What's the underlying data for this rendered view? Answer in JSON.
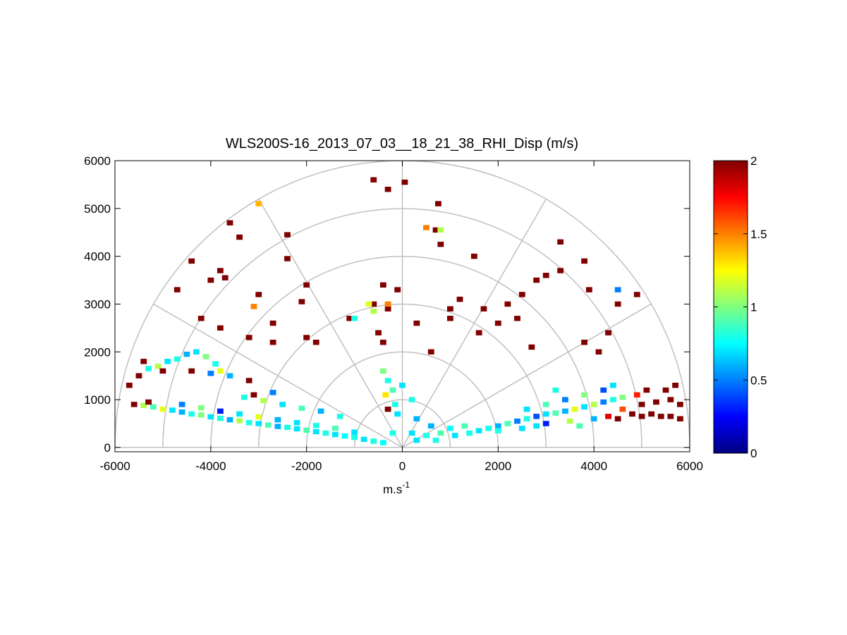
{
  "chart_data": {
    "type": "rhi",
    "title": "WLS200S-16_2013_07_03__18_21_38_RHI_Disp (m/s)",
    "xlabel": {
      "base": "m.s",
      "sup": "-1"
    },
    "xlim": [
      -6000,
      6000
    ],
    "ylim": [
      -90,
      6000
    ],
    "xticks": [
      -6000,
      -4000,
      -2000,
      0,
      2000,
      4000,
      6000
    ],
    "yticks": [
      0,
      1000,
      2000,
      3000,
      4000,
      5000,
      6000
    ],
    "rings": [
      1000,
      2000,
      3000,
      4000,
      5000,
      6000
    ],
    "spokes": [
      0,
      30,
      60,
      90,
      120,
      150,
      180
    ],
    "clim": [
      0,
      2
    ],
    "cticks": [
      0,
      0.5,
      1,
      1.5,
      2
    ],
    "colormap": "jet",
    "cells": [
      {
        "x": -5400,
        "y": 880,
        "value": 1.1
      },
      {
        "x": -5200,
        "y": 850,
        "value": 0.9
      },
      {
        "x": -5000,
        "y": 800,
        "value": 1.2
      },
      {
        "x": -4800,
        "y": 780,
        "value": 0.7
      },
      {
        "x": -4600,
        "y": 740,
        "value": 0.6
      },
      {
        "x": -4400,
        "y": 700,
        "value": 0.8
      },
      {
        "x": -4200,
        "y": 680,
        "value": 1.0
      },
      {
        "x": -4000,
        "y": 640,
        "value": 0.7
      },
      {
        "x": -3800,
        "y": 610,
        "value": 0.8
      },
      {
        "x": -3600,
        "y": 580,
        "value": 0.6
      },
      {
        "x": -3400,
        "y": 560,
        "value": 1.1
      },
      {
        "x": -3200,
        "y": 520,
        "value": 0.8
      },
      {
        "x": -3000,
        "y": 500,
        "value": 0.7
      },
      {
        "x": -2800,
        "y": 470,
        "value": 0.9
      },
      {
        "x": -2600,
        "y": 440,
        "value": 0.6
      },
      {
        "x": -2400,
        "y": 420,
        "value": 0.8
      },
      {
        "x": -2200,
        "y": 390,
        "value": 0.7
      },
      {
        "x": -2000,
        "y": 360,
        "value": 0.9
      },
      {
        "x": -1800,
        "y": 330,
        "value": 0.7
      },
      {
        "x": -1600,
        "y": 300,
        "value": 0.8
      },
      {
        "x": -1400,
        "y": 270,
        "value": 0.7
      },
      {
        "x": -1200,
        "y": 240,
        "value": 0.75
      },
      {
        "x": -1000,
        "y": 210,
        "value": 0.8
      },
      {
        "x": -800,
        "y": 170,
        "value": 0.7
      },
      {
        "x": -600,
        "y": 130,
        "value": 0.8
      },
      {
        "x": -400,
        "y": 100,
        "value": 0.75
      },
      {
        "x": -5300,
        "y": 950,
        "value": 2
      },
      {
        "x": -4600,
        "y": 900,
        "value": 0.5
      },
      {
        "x": -4200,
        "y": 830,
        "value": 1.0
      },
      {
        "x": -3800,
        "y": 760,
        "value": 0.3
      },
      {
        "x": -3400,
        "y": 700,
        "value": 0.7
      },
      {
        "x": -3000,
        "y": 640,
        "value": 1.2
      },
      {
        "x": -2600,
        "y": 580,
        "value": 0.6
      },
      {
        "x": -2200,
        "y": 520,
        "value": 0.7
      },
      {
        "x": -1800,
        "y": 460,
        "value": 0.8
      },
      {
        "x": -1400,
        "y": 400,
        "value": 0.9
      },
      {
        "x": -1000,
        "y": 320,
        "value": 0.7
      },
      {
        "x": -3300,
        "y": 1050,
        "value": 0.8
      },
      {
        "x": -2900,
        "y": 980,
        "value": 1.1
      },
      {
        "x": -2500,
        "y": 900,
        "value": 0.7
      },
      {
        "x": -2100,
        "y": 820,
        "value": 0.9
      },
      {
        "x": -1700,
        "y": 760,
        "value": 0.6
      },
      {
        "x": -1300,
        "y": 650,
        "value": 0.8
      },
      {
        "x": -3100,
        "y": 1100,
        "value": 2
      },
      {
        "x": -2700,
        "y": 1150,
        "value": 0.5
      },
      {
        "x": -5500,
        "y": 1500,
        "value": 2
      },
      {
        "x": -5300,
        "y": 1650,
        "value": 0.8
      },
      {
        "x": -5100,
        "y": 1700,
        "value": 1.1
      },
      {
        "x": -4900,
        "y": 1800,
        "value": 0.7
      },
      {
        "x": -4700,
        "y": 1850,
        "value": 0.8
      },
      {
        "x": -4500,
        "y": 1950,
        "value": 0.6
      },
      {
        "x": -4300,
        "y": 2000,
        "value": 0.7
      },
      {
        "x": -4100,
        "y": 1900,
        "value": 1.0
      },
      {
        "x": -3900,
        "y": 1750,
        "value": 0.8
      },
      {
        "x": -4000,
        "y": 1550,
        "value": 0.5
      },
      {
        "x": -4400,
        "y": 1600,
        "value": 2
      },
      {
        "x": -5000,
        "y": 1600,
        "value": 2
      },
      {
        "x": -3800,
        "y": 1600,
        "value": 1.2
      },
      {
        "x": -3600,
        "y": 1500,
        "value": 0.6
      },
      {
        "x": -5700,
        "y": 1300,
        "value": 2
      },
      {
        "x": -5600,
        "y": 900,
        "value": 2
      },
      {
        "x": -400,
        "y": 1600,
        "value": 1.0
      },
      {
        "x": -300,
        "y": 1400,
        "value": 0.8
      },
      {
        "x": -200,
        "y": 1200,
        "value": 0.9
      },
      {
        "x": -350,
        "y": 1100,
        "value": 1.3
      },
      {
        "x": -150,
        "y": 900,
        "value": 0.8
      },
      {
        "x": -100,
        "y": 700,
        "value": 0.7
      },
      {
        "x": -300,
        "y": 800,
        "value": 2
      },
      {
        "x": 200,
        "y": 1000,
        "value": 0.8
      },
      {
        "x": 300,
        "y": 600,
        "value": 0.6
      },
      {
        "x": 0,
        "y": 1300,
        "value": 0.7
      },
      {
        "x": 200,
        "y": 300,
        "value": 0.7
      },
      {
        "x": 500,
        "y": 250,
        "value": 0.8
      },
      {
        "x": 800,
        "y": 300,
        "value": 0.9
      },
      {
        "x": 1100,
        "y": 250,
        "value": 0.7
      },
      {
        "x": 1400,
        "y": 300,
        "value": 0.8
      },
      {
        "x": 600,
        "y": 450,
        "value": 0.6
      },
      {
        "x": 1000,
        "y": 400,
        "value": 0.75
      },
      {
        "x": 1300,
        "y": 450,
        "value": 0.9
      },
      {
        "x": -200,
        "y": 300,
        "value": 0.8
      },
      {
        "x": 300,
        "y": 150,
        "value": 0.7
      },
      {
        "x": 700,
        "y": 150,
        "value": 0.8
      },
      {
        "x": 1600,
        "y": 350,
        "value": 0.7
      },
      {
        "x": 1800,
        "y": 400,
        "value": 0.8
      },
      {
        "x": 2000,
        "y": 450,
        "value": 0.6
      },
      {
        "x": 2200,
        "y": 500,
        "value": 0.9
      },
      {
        "x": 2400,
        "y": 550,
        "value": 0.5
      },
      {
        "x": 2600,
        "y": 600,
        "value": 0.8
      },
      {
        "x": 2800,
        "y": 650,
        "value": 0.4
      },
      {
        "x": 3000,
        "y": 700,
        "value": 0.7
      },
      {
        "x": 3200,
        "y": 720,
        "value": 0.9
      },
      {
        "x": 3400,
        "y": 760,
        "value": 0.6
      },
      {
        "x": 3600,
        "y": 800,
        "value": 1.2
      },
      {
        "x": 3800,
        "y": 850,
        "value": 0.7
      },
      {
        "x": 4000,
        "y": 900,
        "value": 1.1
      },
      {
        "x": 4200,
        "y": 950,
        "value": 0.5
      },
      {
        "x": 4400,
        "y": 1000,
        "value": 0.8
      },
      {
        "x": 4600,
        "y": 1050,
        "value": 1.0
      },
      {
        "x": 2000,
        "y": 350,
        "value": 0.8
      },
      {
        "x": 2500,
        "y": 400,
        "value": 0.7
      },
      {
        "x": 3000,
        "y": 500,
        "value": 0.3
      },
      {
        "x": 3500,
        "y": 550,
        "value": 1.1
      },
      {
        "x": 4000,
        "y": 600,
        "value": 0.6
      },
      {
        "x": 4300,
        "y": 650,
        "value": 1.8
      },
      {
        "x": 3700,
        "y": 450,
        "value": 0.9
      },
      {
        "x": 2800,
        "y": 450,
        "value": 0.7
      },
      {
        "x": 2600,
        "y": 800,
        "value": 0.7
      },
      {
        "x": 3000,
        "y": 900,
        "value": 0.9
      },
      {
        "x": 3400,
        "y": 1000,
        "value": 0.5
      },
      {
        "x": 3800,
        "y": 1100,
        "value": 1.0
      },
      {
        "x": 4200,
        "y": 1200,
        "value": 0.4
      },
      {
        "x": 4400,
        "y": 1300,
        "value": 0.7
      },
      {
        "x": 3200,
        "y": 1200,
        "value": 0.8
      },
      {
        "x": 4800,
        "y": 700,
        "value": 2
      },
      {
        "x": 5000,
        "y": 650,
        "value": 2
      },
      {
        "x": 5200,
        "y": 700,
        "value": 2
      },
      {
        "x": 5400,
        "y": 650,
        "value": 2
      },
      {
        "x": 5600,
        "y": 650,
        "value": 2
      },
      {
        "x": 5800,
        "y": 600,
        "value": 2
      },
      {
        "x": 5000,
        "y": 900,
        "value": 2
      },
      {
        "x": 5300,
        "y": 950,
        "value": 2
      },
      {
        "x": 5600,
        "y": 1000,
        "value": 2
      },
      {
        "x": 5500,
        "y": 1200,
        "value": 2
      },
      {
        "x": 5700,
        "y": 1300,
        "value": 2
      },
      {
        "x": 4900,
        "y": 1100,
        "value": 1.7
      },
      {
        "x": 5100,
        "y": 1200,
        "value": 2
      },
      {
        "x": 5800,
        "y": 900,
        "value": 2
      },
      {
        "x": 4600,
        "y": 800,
        "value": 1.6
      },
      {
        "x": 4500,
        "y": 600,
        "value": 2
      },
      {
        "x": -600,
        "y": 5600,
        "value": 2
      },
      {
        "x": 50,
        "y": 5550,
        "value": 2
      },
      {
        "x": -300,
        "y": 5400,
        "value": 2
      },
      {
        "x": 750,
        "y": 5100,
        "value": 2
      },
      {
        "x": 700,
        "y": 4550,
        "value": 2
      },
      {
        "x": 800,
        "y": 4250,
        "value": 2
      },
      {
        "x": 1500,
        "y": 4000,
        "value": 2
      },
      {
        "x": -3600,
        "y": 4700,
        "value": 2
      },
      {
        "x": -3400,
        "y": 4400,
        "value": 2
      },
      {
        "x": -2400,
        "y": 4450,
        "value": 2
      },
      {
        "x": -2400,
        "y": 3950,
        "value": 2
      },
      {
        "x": -4400,
        "y": 3900,
        "value": 2
      },
      {
        "x": -3800,
        "y": 3700,
        "value": 2
      },
      {
        "x": -4000,
        "y": 3500,
        "value": 2
      },
      {
        "x": -3700,
        "y": 3550,
        "value": 2
      },
      {
        "x": -4700,
        "y": 3300,
        "value": 2
      },
      {
        "x": -3000,
        "y": 3200,
        "value": 2
      },
      {
        "x": -2000,
        "y": 3400,
        "value": 2
      },
      {
        "x": -2100,
        "y": 3050,
        "value": 2
      },
      {
        "x": -4200,
        "y": 2700,
        "value": 2
      },
      {
        "x": -3800,
        "y": 2500,
        "value": 2
      },
      {
        "x": -3200,
        "y": 2300,
        "value": 2
      },
      {
        "x": -2700,
        "y": 2600,
        "value": 2
      },
      {
        "x": -2000,
        "y": 2300,
        "value": 2
      },
      {
        "x": -1800,
        "y": 2200,
        "value": 2
      },
      {
        "x": -2700,
        "y": 2200,
        "value": 2
      },
      {
        "x": -1100,
        "y": 2700,
        "value": 2
      },
      {
        "x": -600,
        "y": 3000,
        "value": 2
      },
      {
        "x": -400,
        "y": 3400,
        "value": 2
      },
      {
        "x": -100,
        "y": 3300,
        "value": 2
      },
      {
        "x": -300,
        "y": 2900,
        "value": 2
      },
      {
        "x": -500,
        "y": 2400,
        "value": 2
      },
      {
        "x": -400,
        "y": 2200,
        "value": 2
      },
      {
        "x": 300,
        "y": 2600,
        "value": 2
      },
      {
        "x": 600,
        "y": 2000,
        "value": 2
      },
      {
        "x": 1000,
        "y": 2700,
        "value": 2
      },
      {
        "x": 1200,
        "y": 3100,
        "value": 2
      },
      {
        "x": 1700,
        "y": 2900,
        "value": 2
      },
      {
        "x": 2000,
        "y": 2600,
        "value": 2
      },
      {
        "x": 1600,
        "y": 2400,
        "value": 2
      },
      {
        "x": 2200,
        "y": 3000,
        "value": 2
      },
      {
        "x": 2400,
        "y": 2700,
        "value": 2
      },
      {
        "x": 2500,
        "y": 3200,
        "value": 2
      },
      {
        "x": 2800,
        "y": 3500,
        "value": 2
      },
      {
        "x": 3000,
        "y": 3600,
        "value": 2
      },
      {
        "x": 3300,
        "y": 3700,
        "value": 2
      },
      {
        "x": 3300,
        "y": 4300,
        "value": 2
      },
      {
        "x": 3800,
        "y": 3900,
        "value": 2
      },
      {
        "x": 3900,
        "y": 3300,
        "value": 2
      },
      {
        "x": 4500,
        "y": 3000,
        "value": 2
      },
      {
        "x": 4900,
        "y": 3200,
        "value": 2
      },
      {
        "x": 3800,
        "y": 2200,
        "value": 2
      },
      {
        "x": 4100,
        "y": 2000,
        "value": 2
      },
      {
        "x": 4300,
        "y": 2400,
        "value": 2
      },
      {
        "x": 2700,
        "y": 2100,
        "value": 2
      },
      {
        "x": 1000,
        "y": 2900,
        "value": 2
      },
      {
        "x": -3200,
        "y": 1400,
        "value": 2
      },
      {
        "x": -5400,
        "y": 1800,
        "value": 2
      },
      {
        "x": -3000,
        "y": 5100,
        "value": 1.4
      },
      {
        "x": 500,
        "y": 4600,
        "value": 1.5
      },
      {
        "x": 800,
        "y": 4550,
        "value": 1.1
      },
      {
        "x": 4500,
        "y": 3300,
        "value": 0.5
      },
      {
        "x": -3100,
        "y": 2950,
        "value": 1.5
      },
      {
        "x": -1000,
        "y": 2700,
        "value": 0.8
      },
      {
        "x": -700,
        "y": 3000,
        "value": 1.2
      },
      {
        "x": -600,
        "y": 2850,
        "value": 1.1
      },
      {
        "x": -300,
        "y": 3000,
        "value": 1.5
      }
    ]
  }
}
